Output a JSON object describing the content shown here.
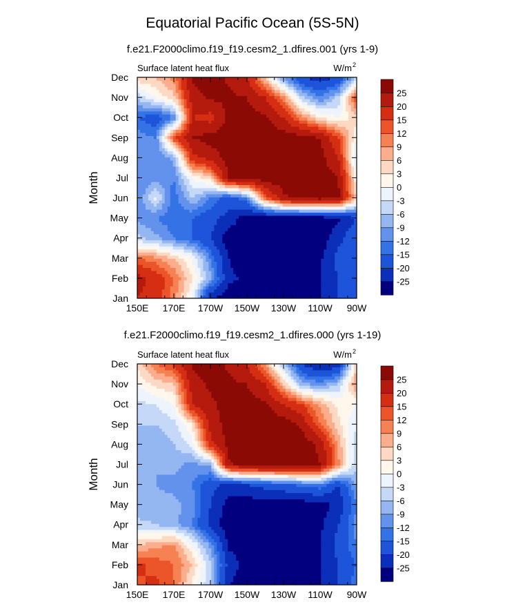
{
  "title": "Equatorial Pacific Ocean (5S-5N)",
  "colors": [
    "#03007f",
    "#0b2fb8",
    "#1d54d9",
    "#3473e6",
    "#6392ec",
    "#94b6f1",
    "#c5d8f7",
    "#eef4fe",
    "#fff6ec",
    "#fdd9c4",
    "#fbad8c",
    "#f68153",
    "#ec542a",
    "#d52e13",
    "#b41a0d",
    "#8c0a05"
  ],
  "chart_data": [
    {
      "type": "heatmap",
      "title": "f.e21.F2000climo.f19_f19.cesm2_1.dfires.001 (yrs 1-9)",
      "left_label": "Surface latent heat flux",
      "right_label": "W/m",
      "right_label_sup": "2",
      "ylabel": "Month",
      "xlabel": "",
      "x_ticks": [
        "150E",
        "170E",
        "170W",
        "150W",
        "130W",
        "110W",
        "90W"
      ],
      "y_ticks": [
        "Jan",
        "Feb",
        "Mar",
        "Apr",
        "May",
        "Jun",
        "Jul",
        "Aug",
        "Sep",
        "Oct",
        "Nov",
        "Dec"
      ],
      "colorbar_levels": [
        "25",
        "20",
        "15",
        "12",
        "9",
        "6",
        "3",
        "0",
        "-3",
        "-6",
        "-9",
        "-12",
        "-15",
        "-20",
        "-25"
      ],
      "x": [
        150,
        160,
        170,
        180,
        190,
        200,
        210,
        220,
        230,
        240,
        250,
        260,
        270
      ],
      "xlim": [
        150,
        270
      ],
      "months": [
        1,
        2,
        3,
        4,
        5,
        6,
        7,
        8,
        9,
        10,
        11,
        12
      ],
      "ylim": [
        1,
        12
      ],
      "values": [
        [
          20,
          18,
          10,
          0,
          -25,
          -28,
          -28,
          -28,
          -28,
          -27,
          -25,
          -20,
          -15
        ],
        [
          22,
          18,
          12,
          3,
          -8,
          -24,
          -26,
          -28,
          -28,
          -27,
          -25,
          -20,
          -18
        ],
        [
          12,
          10,
          6,
          0,
          -12,
          -25,
          -28,
          -28,
          -28,
          -28,
          -26,
          -18,
          -15
        ],
        [
          -5,
          -8,
          -12,
          -15,
          -20,
          -28,
          -28,
          -28,
          -28,
          -28,
          -28,
          -22,
          -15
        ],
        [
          -10,
          -12,
          -14,
          -15,
          -18,
          -22,
          -28,
          -28,
          -28,
          -28,
          -28,
          -26,
          -20
        ],
        [
          -12,
          -2,
          -14,
          -6,
          -12,
          -18,
          -12,
          12,
          24,
          26,
          27,
          26,
          5
        ],
        [
          -12,
          -10,
          -12,
          0,
          5,
          26,
          27,
          28,
          28,
          28,
          28,
          25,
          0
        ],
        [
          -10,
          -12,
          -8,
          18,
          22,
          27,
          28,
          28,
          28,
          28,
          27,
          20,
          -5
        ],
        [
          -10,
          -12,
          15,
          25,
          27,
          28,
          28,
          28,
          28,
          27,
          25,
          15,
          0
        ],
        [
          -15,
          -18,
          -12,
          20,
          18,
          26,
          27,
          26,
          20,
          10,
          3,
          0,
          5
        ],
        [
          -5,
          0,
          5,
          22,
          26,
          26,
          25,
          20,
          10,
          -5,
          -12,
          -5,
          15
        ],
        [
          5,
          6,
          10,
          26,
          28,
          24,
          20,
          5,
          -10,
          -20,
          -22,
          -20,
          -5
        ]
      ]
    },
    {
      "type": "heatmap",
      "title": "f.e21.F2000climo.f19_f19.cesm2_1.dfires.000 (yrs 1-19)",
      "left_label": "Surface latent heat flux",
      "right_label": "W/m",
      "right_label_sup": "2",
      "ylabel": "Month",
      "xlabel": "",
      "x_ticks": [
        "150E",
        "170E",
        "170W",
        "150W",
        "130W",
        "110W",
        "90W"
      ],
      "y_ticks": [
        "Jan",
        "Feb",
        "Mar",
        "Apr",
        "May",
        "Jun",
        "Jul",
        "Aug",
        "Sep",
        "Oct",
        "Nov",
        "Dec"
      ],
      "colorbar_levels": [
        "25",
        "20",
        "15",
        "12",
        "9",
        "6",
        "3",
        "0",
        "-3",
        "-6",
        "-9",
        "-12",
        "-15",
        "-20",
        "-25"
      ],
      "x": [
        150,
        160,
        170,
        180,
        190,
        200,
        210,
        220,
        230,
        240,
        250,
        260,
        270
      ],
      "xlim": [
        150,
        270
      ],
      "months": [
        1,
        2,
        3,
        4,
        5,
        6,
        7,
        8,
        9,
        10,
        11,
        12
      ],
      "ylim": [
        1,
        12
      ],
      "values": [
        [
          14,
          16,
          12,
          2,
          -6,
          -25,
          -28,
          -28,
          -28,
          -28,
          -25,
          -20,
          -12
        ],
        [
          16,
          14,
          12,
          6,
          -5,
          -22,
          -27,
          -28,
          -28,
          -28,
          -25,
          -20,
          -15
        ],
        [
          6,
          8,
          10,
          0,
          -10,
          -26,
          -28,
          -28,
          -28,
          -27,
          -25,
          -18,
          -12
        ],
        [
          -5,
          -6,
          -8,
          -12,
          -22,
          -28,
          -28,
          -28,
          -28,
          -28,
          -26,
          -20,
          -10
        ],
        [
          -8,
          -8,
          -8,
          -10,
          -20,
          -27,
          -28,
          -28,
          -28,
          -28,
          -27,
          -24,
          -12
        ],
        [
          -8,
          -9,
          -10,
          -12,
          -18,
          -22,
          -20,
          -18,
          -16,
          -14,
          -12,
          -20,
          -8
        ],
        [
          -8,
          -9,
          -8,
          -10,
          -8,
          24,
          27,
          28,
          28,
          28,
          25,
          10,
          -6
        ],
        [
          -8,
          -8,
          -6,
          -2,
          18,
          27,
          28,
          28,
          28,
          28,
          24,
          8,
          -5
        ],
        [
          -6,
          -6,
          -4,
          3,
          22,
          27,
          28,
          28,
          28,
          24,
          12,
          4,
          -3
        ],
        [
          -4,
          -3,
          0,
          20,
          24,
          27,
          27,
          26,
          20,
          15,
          8,
          2,
          0
        ],
        [
          0,
          4,
          6,
          22,
          26,
          26,
          25,
          20,
          6,
          -8,
          -10,
          -6,
          10
        ],
        [
          4,
          12,
          16,
          26,
          28,
          24,
          20,
          8,
          -6,
          -20,
          -26,
          -22,
          5
        ]
      ]
    }
  ]
}
